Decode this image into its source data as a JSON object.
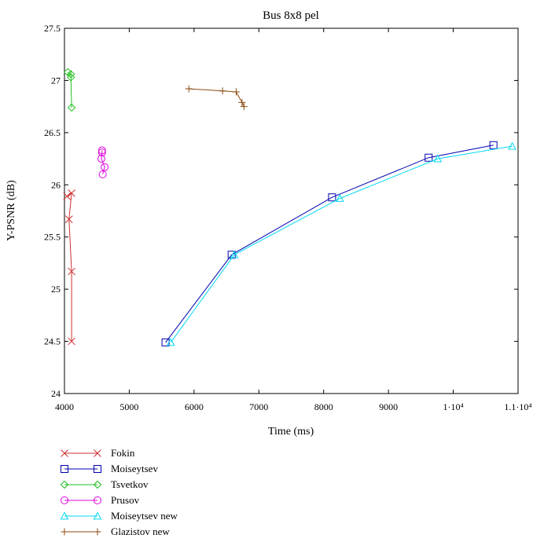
{
  "chart_data": {
    "type": "line",
    "title": "Bus 8x8 pel",
    "xlabel": "Time (ms)",
    "ylabel": "Y-PSNR (dB)",
    "xlim": [
      4000,
      11000
    ],
    "ylim": [
      24,
      27.5
    ],
    "grid": false,
    "legend_position": "bottom-left",
    "x_ticks": [
      {
        "value": 4000,
        "label": "4000"
      },
      {
        "value": 5000,
        "label": "5000"
      },
      {
        "value": 6000,
        "label": "6000"
      },
      {
        "value": 7000,
        "label": "7000"
      },
      {
        "value": 8000,
        "label": "8000"
      },
      {
        "value": 9000,
        "label": "9000"
      },
      {
        "value": 10000,
        "label": "1·10⁴"
      },
      {
        "value": 11000,
        "label": "1.1·10⁴"
      }
    ],
    "y_ticks": [
      {
        "value": 24,
        "label": "24"
      },
      {
        "value": 24.5,
        "label": "24.5"
      },
      {
        "value": 25,
        "label": "25"
      },
      {
        "value": 25.5,
        "label": "25.5"
      },
      {
        "value": 26,
        "label": "26"
      },
      {
        "value": 26.5,
        "label": "26.5"
      },
      {
        "value": 27,
        "label": "27"
      },
      {
        "value": 27.5,
        "label": "27.5"
      }
    ],
    "series": [
      {
        "name": "Fokin",
        "color": "#d03030",
        "marker": "x",
        "points": [
          [
            4040,
            25.89
          ],
          [
            4110,
            25.92
          ],
          [
            4070,
            25.67
          ],
          [
            4110,
            25.17
          ],
          [
            4110,
            24.5
          ]
        ]
      },
      {
        "name": "Moiseytsev",
        "color": "#0000b0",
        "marker": "square",
        "points": [
          [
            5560,
            24.49
          ],
          [
            6580,
            25.33
          ],
          [
            8130,
            25.88
          ],
          [
            9620,
            26.26
          ],
          [
            10620,
            26.38
          ]
        ]
      },
      {
        "name": "Tsvetkov",
        "color": "#20c020",
        "marker": "diamond",
        "points": [
          [
            4050,
            27.08
          ],
          [
            4100,
            27.06
          ],
          [
            4100,
            27.03
          ],
          [
            4110,
            26.74
          ]
        ]
      },
      {
        "name": "Prusov",
        "color": "#e000e0",
        "marker": "circle",
        "points": [
          [
            4580,
            26.33
          ],
          [
            4580,
            26.31
          ],
          [
            4570,
            26.25
          ],
          [
            4620,
            26.17
          ],
          [
            4590,
            26.1
          ]
        ]
      },
      {
        "name": "Moiseytsev new",
        "color": "#00d8f0",
        "marker": "triangle",
        "points": [
          [
            5640,
            24.49
          ],
          [
            6620,
            25.33
          ],
          [
            8250,
            25.87
          ],
          [
            9760,
            26.25
          ],
          [
            10910,
            26.37
          ]
        ]
      },
      {
        "name": "Glazistov new",
        "color": "#8b4a10",
        "marker": "plus",
        "points": [
          [
            5920,
            26.92
          ],
          [
            6440,
            26.9
          ],
          [
            6650,
            26.89
          ],
          [
            6740,
            26.79
          ],
          [
            6770,
            26.75
          ]
        ]
      }
    ]
  }
}
